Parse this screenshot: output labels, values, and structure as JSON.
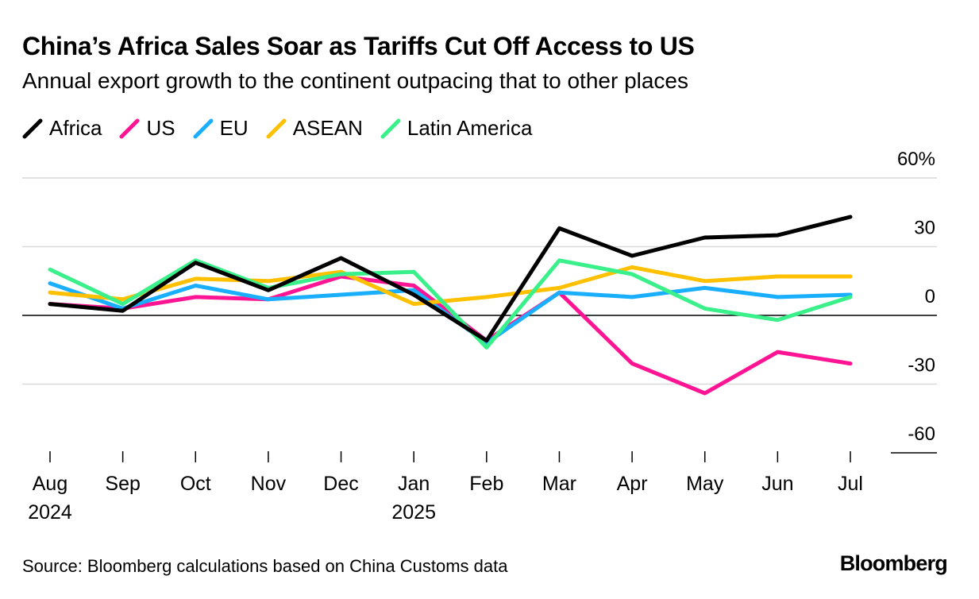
{
  "title": "China’s Africa Sales Soar as Tariffs Cut Off Access to US",
  "subtitle": "Annual export growth to the continent outpacing that to other places",
  "source": "Source: Bloomberg calculations based on China Customs data",
  "brand": "Bloomberg",
  "chart_data": {
    "type": "line",
    "title": "China’s Africa Sales Soar as Tariffs Cut Off Access to US",
    "subtitle": "Annual export growth to the continent outpacing that to other places",
    "x": [
      "Aug",
      "Sep",
      "Oct",
      "Nov",
      "Dec",
      "Jan",
      "Feb",
      "Mar",
      "Apr",
      "May",
      "Jun",
      "Jul"
    ],
    "x_sublabels": [
      "2024",
      "",
      "",
      "",
      "",
      "2025",
      "",
      "",
      "",
      "",
      "",
      ""
    ],
    "ylim": [
      -60,
      60
    ],
    "yticks": [
      -60,
      -30,
      0,
      30,
      60
    ],
    "ytick_labels": [
      "-60",
      "-30",
      "0",
      "30",
      "60%"
    ],
    "grid": true,
    "legend_position": "top-left",
    "series": [
      {
        "name": "Africa",
        "color": "#000000",
        "values": [
          5,
          2,
          23,
          11,
          25,
          9,
          -11,
          38,
          26,
          34,
          35,
          43
        ]
      },
      {
        "name": "US",
        "color": "#ff1493",
        "values": [
          5,
          3,
          8,
          7,
          17,
          13,
          -11,
          10,
          -21,
          -34,
          -16,
          -21
        ]
      },
      {
        "name": "EU",
        "color": "#1aaeff",
        "values": [
          14,
          3,
          13,
          7,
          9,
          11,
          -12,
          10,
          8,
          12,
          8,
          9
        ]
      },
      {
        "name": "ASEAN",
        "color": "#ffc000",
        "values": [
          10,
          7,
          16,
          15,
          19,
          5,
          8,
          12,
          21,
          15,
          17,
          17
        ]
      },
      {
        "name": "Latin America",
        "color": "#39f08a",
        "values": [
          20,
          5,
          24,
          12,
          18,
          19,
          -14,
          24,
          18,
          3,
          -2,
          8
        ]
      }
    ]
  }
}
